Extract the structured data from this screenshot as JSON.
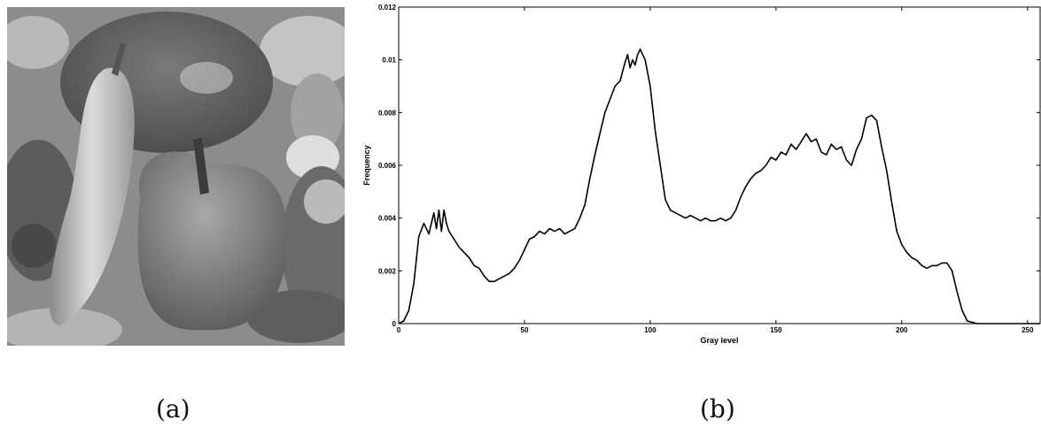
{
  "captions": {
    "a": "(a)",
    "b": "(b)"
  },
  "image_a": {
    "content": "grayscale-peppers-photo"
  },
  "chart_data": {
    "type": "line",
    "xlabel": "Gray level",
    "ylabel": "Frequency",
    "xlim": [
      0,
      255
    ],
    "ylim": [
      0,
      0.012
    ],
    "x_ticks": [
      0,
      50,
      100,
      150,
      200,
      250
    ],
    "y_ticks": [
      0,
      0.002,
      0.004,
      0.006,
      0.008,
      0.01,
      0.012
    ],
    "y_tick_labels": [
      "0",
      "0.002",
      "0.004",
      "0.006",
      "0.008",
      "0.01",
      "0.012"
    ],
    "grid": false,
    "line_color": "#000000",
    "series": [
      {
        "x": [
          0,
          2,
          4,
          6,
          8,
          10,
          12,
          14,
          15,
          16,
          17,
          18,
          19,
          20,
          22,
          24,
          26,
          28,
          30,
          32,
          34,
          36,
          38,
          40,
          42,
          44,
          46,
          48,
          50,
          52,
          54,
          56,
          58,
          60,
          62,
          64,
          66,
          68,
          70,
          72,
          74,
          76,
          78,
          80,
          82,
          84,
          86,
          88,
          90,
          91,
          92,
          93,
          94,
          95,
          96,
          97,
          98,
          100,
          102,
          104,
          106,
          108,
          110,
          112,
          114,
          116,
          118,
          120,
          122,
          124,
          126,
          128,
          130,
          132,
          134,
          136,
          138,
          140,
          142,
          144,
          146,
          148,
          150,
          152,
          154,
          156,
          158,
          160,
          162,
          164,
          166,
          168,
          170,
          172,
          174,
          176,
          178,
          180,
          182,
          184,
          186,
          188,
          190,
          192,
          194,
          196,
          198,
          200,
          202,
          204,
          206,
          208,
          210,
          212,
          214,
          216,
          218,
          220,
          222,
          224,
          226,
          228,
          230,
          240,
          250,
          255
        ],
        "y": [
          0,
          0.0001,
          0.0005,
          0.0015,
          0.0033,
          0.0038,
          0.0034,
          0.0042,
          0.0036,
          0.0043,
          0.0035,
          0.0043,
          0.0038,
          0.0035,
          0.0032,
          0.0029,
          0.0027,
          0.0025,
          0.0022,
          0.0021,
          0.0018,
          0.0016,
          0.0016,
          0.0017,
          0.0018,
          0.0019,
          0.0021,
          0.0024,
          0.0028,
          0.0032,
          0.0033,
          0.0035,
          0.0034,
          0.0036,
          0.0035,
          0.0036,
          0.0034,
          0.0035,
          0.0036,
          0.004,
          0.0045,
          0.0055,
          0.0064,
          0.0072,
          0.008,
          0.0085,
          0.009,
          0.0092,
          0.0099,
          0.0102,
          0.0097,
          0.01,
          0.0098,
          0.0102,
          0.0104,
          0.0102,
          0.01,
          0.009,
          0.0073,
          0.006,
          0.0047,
          0.0043,
          0.0042,
          0.0041,
          0.004,
          0.0041,
          0.004,
          0.0039,
          0.004,
          0.0039,
          0.0039,
          0.004,
          0.0039,
          0.004,
          0.0043,
          0.0048,
          0.0052,
          0.0055,
          0.0057,
          0.0058,
          0.006,
          0.0063,
          0.0062,
          0.0065,
          0.0064,
          0.0068,
          0.0066,
          0.0069,
          0.0072,
          0.0069,
          0.007,
          0.0065,
          0.0064,
          0.0068,
          0.0066,
          0.0067,
          0.0062,
          0.006,
          0.0066,
          0.007,
          0.0078,
          0.0079,
          0.0077,
          0.0067,
          0.0058,
          0.0046,
          0.0035,
          0.003,
          0.0027,
          0.0025,
          0.0024,
          0.0022,
          0.0021,
          0.0022,
          0.0022,
          0.0023,
          0.0023,
          0.002,
          0.0012,
          0.0005,
          0.0001,
          5e-05,
          0,
          0,
          0,
          0
        ]
      }
    ]
  }
}
